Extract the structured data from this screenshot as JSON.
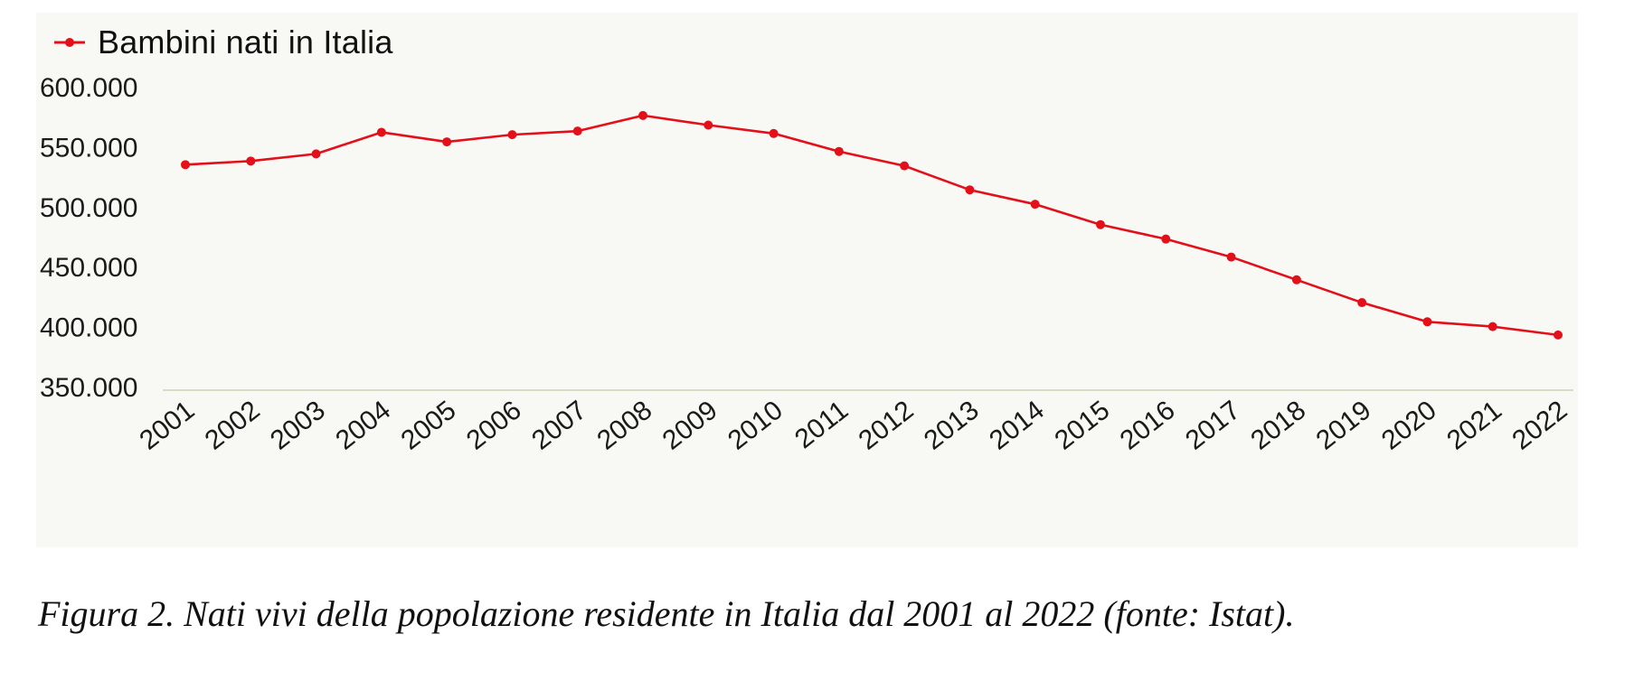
{
  "caption": "Figura 2. Nati vivi della popolazione residente in Italia dal 2001 al 2022 (fonte: Istat).",
  "chart_data": {
    "type": "line",
    "title": "",
    "xlabel": "",
    "ylabel": "",
    "categories": [
      "2001",
      "2002",
      "2003",
      "2004",
      "2005",
      "2006",
      "2007",
      "2008",
      "2009",
      "2010",
      "2011",
      "2012",
      "2013",
      "2014",
      "2015",
      "2016",
      "2017",
      "2018",
      "2019",
      "2020",
      "2021",
      "2022"
    ],
    "series": [
      {
        "name": "Bambini nati in Italia",
        "color": "#e3101a",
        "values": [
          535000,
          538000,
          544000,
          562000,
          554000,
          560000,
          563000,
          576000,
          568000,
          561000,
          546000,
          534000,
          514000,
          502000,
          485000,
          473000,
          458000,
          439000,
          420000,
          404000,
          400000,
          393000
        ]
      }
    ],
    "ylim": [
      350000,
      600000
    ],
    "yticks": [
      350000,
      400000,
      450000,
      500000,
      550000,
      600000
    ],
    "ytick_labels": [
      "350.000",
      "400.000",
      "450.000",
      "500.000",
      "550.000",
      "600.000"
    ],
    "legend_position": "top-left",
    "grid": false
  }
}
